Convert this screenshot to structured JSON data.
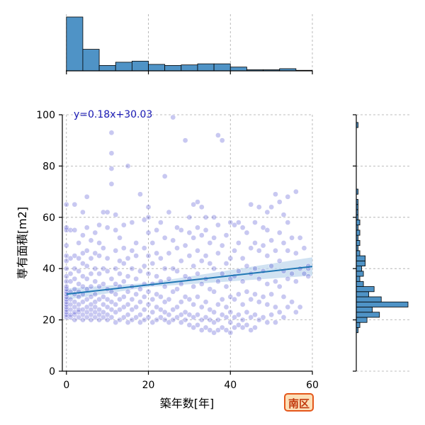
{
  "chart_data": {
    "type": "scatter",
    "title": "",
    "xlabel": "築年数[年]",
    "ylabel": "専有面積[m2]",
    "xlim": [
      -1,
      60
    ],
    "ylim": [
      0,
      100
    ],
    "x_ticks": [
      0,
      20,
      40,
      60
    ],
    "y_ticks": [
      0,
      20,
      40,
      60,
      80,
      100
    ],
    "grid": true,
    "regression": {
      "label": "y=0.18x+30.03",
      "slope": 0.18,
      "intercept": 30.03,
      "color": "#1f77b4",
      "band_color": "#bcd6ec"
    },
    "point_color": "#3a3acb",
    "hist_color": "#4f93c6",
    "badge": "南区",
    "points": [
      [
        0,
        21
      ],
      [
        0,
        22
      ],
      [
        0,
        23
      ],
      [
        0,
        24
      ],
      [
        0,
        25
      ],
      [
        0,
        26
      ],
      [
        0,
        27
      ],
      [
        0,
        28
      ],
      [
        0,
        29
      ],
      [
        0,
        30
      ],
      [
        0,
        31
      ],
      [
        0,
        32
      ],
      [
        0,
        33
      ],
      [
        0,
        35
      ],
      [
        0,
        37
      ],
      [
        0,
        40
      ],
      [
        0,
        43
      ],
      [
        0,
        45
      ],
      [
        0,
        49
      ],
      [
        0,
        55
      ],
      [
        0,
        56
      ],
      [
        0,
        65
      ],
      [
        1,
        21
      ],
      [
        1,
        22
      ],
      [
        1,
        24
      ],
      [
        1,
        26
      ],
      [
        1,
        28
      ],
      [
        1,
        31
      ],
      [
        1,
        35
      ],
      [
        1,
        38
      ],
      [
        1,
        44
      ],
      [
        1,
        55
      ],
      [
        2,
        20
      ],
      [
        2,
        22
      ],
      [
        2,
        23
      ],
      [
        2,
        25
      ],
      [
        2,
        27
      ],
      [
        2,
        30
      ],
      [
        2,
        32
      ],
      [
        2,
        36
      ],
      [
        2,
        40
      ],
      [
        2,
        45
      ],
      [
        2,
        55
      ],
      [
        2,
        65
      ],
      [
        3,
        21
      ],
      [
        3,
        23
      ],
      [
        3,
        24
      ],
      [
        3,
        26
      ],
      [
        3,
        29
      ],
      [
        3,
        31
      ],
      [
        3,
        34
      ],
      [
        3,
        39
      ],
      [
        3,
        44
      ],
      [
        3,
        50
      ],
      [
        4,
        20
      ],
      [
        4,
        22
      ],
      [
        4,
        24
      ],
      [
        4,
        27
      ],
      [
        4,
        30
      ],
      [
        4,
        33
      ],
      [
        4,
        37
      ],
      [
        4,
        42
      ],
      [
        4,
        46
      ],
      [
        4,
        53
      ],
      [
        4,
        62
      ],
      [
        5,
        21
      ],
      [
        5,
        23
      ],
      [
        5,
        25
      ],
      [
        5,
        28
      ],
      [
        5,
        32
      ],
      [
        5,
        36
      ],
      [
        5,
        41
      ],
      [
        5,
        47
      ],
      [
        5,
        56
      ],
      [
        5,
        68
      ],
      [
        6,
        20
      ],
      [
        6,
        22
      ],
      [
        6,
        24
      ],
      [
        6,
        26
      ],
      [
        6,
        29
      ],
      [
        6,
        33
      ],
      [
        6,
        38
      ],
      [
        6,
        44
      ],
      [
        6,
        51
      ],
      [
        7,
        21
      ],
      [
        7,
        23
      ],
      [
        7,
        25
      ],
      [
        7,
        27
      ],
      [
        7,
        30
      ],
      [
        7,
        35
      ],
      [
        7,
        40
      ],
      [
        7,
        46
      ],
      [
        7,
        54
      ],
      [
        8,
        20
      ],
      [
        8,
        22
      ],
      [
        8,
        24
      ],
      [
        8,
        28
      ],
      [
        8,
        33
      ],
      [
        8,
        38
      ],
      [
        8,
        45
      ],
      [
        8,
        50
      ],
      [
        8,
        57
      ],
      [
        9,
        21
      ],
      [
        9,
        23
      ],
      [
        9,
        26
      ],
      [
        9,
        29
      ],
      [
        9,
        34
      ],
      [
        9,
        40
      ],
      [
        9,
        48
      ],
      [
        9,
        62
      ],
      [
        10,
        20
      ],
      [
        10,
        22
      ],
      [
        10,
        25
      ],
      [
        10,
        28
      ],
      [
        10,
        32
      ],
      [
        10,
        39
      ],
      [
        10,
        44
      ],
      [
        10,
        56
      ],
      [
        10,
        62
      ],
      [
        11,
        21
      ],
      [
        11,
        24
      ],
      [
        11,
        27
      ],
      [
        11,
        31
      ],
      [
        11,
        36
      ],
      [
        11,
        73
      ],
      [
        11,
        79
      ],
      [
        11,
        85
      ],
      [
        11,
        93
      ],
      [
        12,
        19
      ],
      [
        12,
        23
      ],
      [
        12,
        26
      ],
      [
        12,
        30
      ],
      [
        12,
        34
      ],
      [
        12,
        40
      ],
      [
        12,
        47
      ],
      [
        12,
        55
      ],
      [
        12,
        61
      ],
      [
        13,
        20
      ],
      [
        13,
        24
      ],
      [
        13,
        28
      ],
      [
        13,
        33
      ],
      [
        13,
        38
      ],
      [
        13,
        43
      ],
      [
        13,
        52
      ],
      [
        14,
        21
      ],
      [
        14,
        25
      ],
      [
        14,
        29
      ],
      [
        14,
        35
      ],
      [
        14,
        42
      ],
      [
        14,
        48
      ],
      [
        14,
        57
      ],
      [
        15,
        19
      ],
      [
        15,
        22
      ],
      [
        15,
        26
      ],
      [
        15,
        31
      ],
      [
        15,
        37
      ],
      [
        15,
        44
      ],
      [
        15,
        80
      ],
      [
        16,
        20
      ],
      [
        16,
        24
      ],
      [
        16,
        28
      ],
      [
        16,
        33
      ],
      [
        16,
        40
      ],
      [
        16,
        47
      ],
      [
        16,
        58
      ],
      [
        17,
        21
      ],
      [
        17,
        25
      ],
      [
        17,
        30
      ],
      [
        17,
        36
      ],
      [
        17,
        45
      ],
      [
        17,
        50
      ],
      [
        18,
        19
      ],
      [
        18,
        22
      ],
      [
        18,
        27
      ],
      [
        18,
        32
      ],
      [
        18,
        39
      ],
      [
        18,
        69
      ],
      [
        19,
        20
      ],
      [
        19,
        24
      ],
      [
        19,
        29
      ],
      [
        19,
        34
      ],
      [
        19,
        41
      ],
      [
        19,
        48
      ],
      [
        19,
        59
      ],
      [
        20,
        21
      ],
      [
        20,
        26
      ],
      [
        20,
        31
      ],
      [
        20,
        38
      ],
      [
        20,
        45
      ],
      [
        20,
        54
      ],
      [
        20,
        60
      ],
      [
        20,
        64
      ],
      [
        21,
        19
      ],
      [
        21,
        23
      ],
      [
        21,
        28
      ],
      [
        21,
        34
      ],
      [
        21,
        42
      ],
      [
        21,
        50
      ],
      [
        22,
        20
      ],
      [
        22,
        25
      ],
      [
        22,
        30
      ],
      [
        22,
        37
      ],
      [
        22,
        46
      ],
      [
        22,
        55
      ],
      [
        23,
        21
      ],
      [
        23,
        24
      ],
      [
        23,
        29
      ],
      [
        23,
        35
      ],
      [
        23,
        44
      ],
      [
        23,
        58
      ],
      [
        24,
        20
      ],
      [
        24,
        23
      ],
      [
        24,
        27
      ],
      [
        24,
        33
      ],
      [
        24,
        40
      ],
      [
        24,
        52
      ],
      [
        24,
        76
      ],
      [
        25,
        19
      ],
      [
        25,
        22
      ],
      [
        25,
        28
      ],
      [
        25,
        36
      ],
      [
        25,
        46
      ],
      [
        25,
        62
      ],
      [
        26,
        20
      ],
      [
        26,
        24
      ],
      [
        26,
        31
      ],
      [
        26,
        40
      ],
      [
        26,
        51
      ],
      [
        26,
        99
      ],
      [
        27,
        21
      ],
      [
        27,
        25
      ],
      [
        27,
        32
      ],
      [
        27,
        39
      ],
      [
        27,
        48
      ],
      [
        27,
        56
      ],
      [
        28,
        19
      ],
      [
        28,
        22
      ],
      [
        28,
        27
      ],
      [
        28,
        34
      ],
      [
        28,
        43
      ],
      [
        28,
        55
      ],
      [
        29,
        20
      ],
      [
        29,
        23
      ],
      [
        29,
        29
      ],
      [
        29,
        37
      ],
      [
        29,
        49
      ],
      [
        29,
        90
      ],
      [
        30,
        18
      ],
      [
        30,
        22
      ],
      [
        30,
        28
      ],
      [
        30,
        36
      ],
      [
        30,
        45
      ],
      [
        30,
        54
      ],
      [
        30,
        60
      ],
      [
        31,
        17
      ],
      [
        31,
        21
      ],
      [
        31,
        26
      ],
      [
        31,
        33
      ],
      [
        31,
        41
      ],
      [
        31,
        52
      ],
      [
        31,
        65
      ],
      [
        32,
        18
      ],
      [
        32,
        22
      ],
      [
        32,
        29
      ],
      [
        32,
        38
      ],
      [
        32,
        47
      ],
      [
        32,
        56
      ],
      [
        32,
        66
      ],
      [
        33,
        16
      ],
      [
        33,
        20
      ],
      [
        33,
        25
      ],
      [
        33,
        34
      ],
      [
        33,
        43
      ],
      [
        33,
        53
      ],
      [
        33,
        64
      ],
      [
        34,
        17
      ],
      [
        34,
        21
      ],
      [
        34,
        27
      ],
      [
        34,
        36
      ],
      [
        34,
        45
      ],
      [
        34,
        55
      ],
      [
        34,
        60
      ],
      [
        35,
        16
      ],
      [
        35,
        20
      ],
      [
        35,
        24
      ],
      [
        35,
        32
      ],
      [
        35,
        42
      ],
      [
        35,
        50
      ],
      [
        36,
        15
      ],
      [
        36,
        19
      ],
      [
        36,
        23
      ],
      [
        36,
        31
      ],
      [
        36,
        40
      ],
      [
        36,
        52
      ],
      [
        36,
        60
      ],
      [
        37,
        16
      ],
      [
        37,
        20
      ],
      [
        37,
        26
      ],
      [
        37,
        35
      ],
      [
        37,
        46
      ],
      [
        37,
        57
      ],
      [
        37,
        92
      ],
      [
        38,
        17
      ],
      [
        38,
        22
      ],
      [
        38,
        28
      ],
      [
        38,
        38
      ],
      [
        38,
        49
      ],
      [
        38,
        90
      ],
      [
        39,
        16
      ],
      [
        39,
        21
      ],
      [
        39,
        25
      ],
      [
        39,
        33
      ],
      [
        39,
        42
      ],
      [
        39,
        53
      ],
      [
        40,
        15
      ],
      [
        40,
        19
      ],
      [
        40,
        23
      ],
      [
        40,
        29
      ],
      [
        40,
        36
      ],
      [
        40,
        44
      ],
      [
        40,
        58
      ],
      [
        41,
        17
      ],
      [
        41,
        21
      ],
      [
        41,
        28
      ],
      [
        41,
        37
      ],
      [
        41,
        47
      ],
      [
        41,
        57
      ],
      [
        42,
        18
      ],
      [
        42,
        22
      ],
      [
        42,
        30
      ],
      [
        42,
        39
      ],
      [
        42,
        50
      ],
      [
        42,
        58
      ],
      [
        43,
        17
      ],
      [
        43,
        20
      ],
      [
        43,
        26
      ],
      [
        43,
        35
      ],
      [
        43,
        44
      ],
      [
        43,
        56
      ],
      [
        44,
        18
      ],
      [
        44,
        23
      ],
      [
        44,
        31
      ],
      [
        44,
        41
      ],
      [
        44,
        54
      ],
      [
        45,
        16
      ],
      [
        45,
        21
      ],
      [
        45,
        28
      ],
      [
        45,
        38
      ],
      [
        45,
        48
      ],
      [
        45,
        65
      ],
      [
        46,
        17
      ],
      [
        46,
        22
      ],
      [
        46,
        30
      ],
      [
        46,
        40
      ],
      [
        46,
        50
      ],
      [
        46,
        58
      ],
      [
        47,
        20
      ],
      [
        47,
        27
      ],
      [
        47,
        36
      ],
      [
        47,
        47
      ],
      [
        47,
        64
      ],
      [
        48,
        21
      ],
      [
        48,
        29
      ],
      [
        48,
        39
      ],
      [
        48,
        49
      ],
      [
        48,
        56
      ],
      [
        49,
        19
      ],
      [
        49,
        26
      ],
      [
        49,
        34
      ],
      [
        49,
        45
      ],
      [
        49,
        55
      ],
      [
        49,
        62
      ],
      [
        50,
        22
      ],
      [
        50,
        30
      ],
      [
        50,
        41
      ],
      [
        50,
        51
      ],
      [
        50,
        64
      ],
      [
        51,
        19
      ],
      [
        51,
        25
      ],
      [
        51,
        35
      ],
      [
        51,
        47
      ],
      [
        51,
        69
      ],
      [
        52,
        23
      ],
      [
        52,
        33
      ],
      [
        52,
        43
      ],
      [
        52,
        54
      ],
      [
        52,
        66
      ],
      [
        53,
        21
      ],
      [
        53,
        29
      ],
      [
        53,
        39
      ],
      [
        53,
        50
      ],
      [
        53,
        61
      ],
      [
        54,
        25
      ],
      [
        54,
        36
      ],
      [
        54,
        47
      ],
      [
        54,
        58
      ],
      [
        54,
        68
      ],
      [
        55,
        27
      ],
      [
        55,
        38
      ],
      [
        55,
        52
      ],
      [
        56,
        23
      ],
      [
        56,
        35
      ],
      [
        56,
        46
      ],
      [
        56,
        70
      ],
      [
        57,
        25
      ],
      [
        57,
        40
      ],
      [
        57,
        52
      ],
      [
        58,
        38
      ],
      [
        58,
        48
      ],
      [
        59,
        37
      ],
      [
        59,
        40
      ],
      [
        59,
        41
      ]
    ],
    "hist_x": {
      "bin_edges": [
        0,
        4,
        8,
        12,
        16,
        20,
        24,
        28,
        32,
        36,
        40,
        44,
        48,
        52,
        56,
        60
      ],
      "values": [
        100,
        40,
        10,
        16,
        18,
        12,
        10,
        11,
        13,
        13,
        7,
        2,
        2,
        4,
        1
      ]
    },
    "hist_y": {
      "bin_edges": [
        15,
        17,
        19,
        21,
        23,
        25,
        27,
        29,
        31,
        33,
        35,
        37,
        39,
        41,
        43,
        45,
        47,
        49,
        51,
        53,
        55,
        57,
        59,
        61,
        63,
        65,
        67,
        69,
        71,
        73,
        75,
        77,
        79,
        81,
        83,
        85,
        87,
        89,
        91,
        93,
        95,
        97,
        99
      ],
      "values": [
        1,
        2,
        6,
        13,
        9,
        29,
        14,
        7,
        10,
        4,
        2,
        4,
        3,
        5,
        5,
        2,
        1,
        2,
        1,
        2,
        1,
        2,
        1,
        1,
        1,
        1,
        0,
        1,
        0,
        0,
        0,
        0,
        0,
        0,
        0,
        0,
        0,
        0,
        0,
        0,
        1,
        0
      ]
    }
  }
}
